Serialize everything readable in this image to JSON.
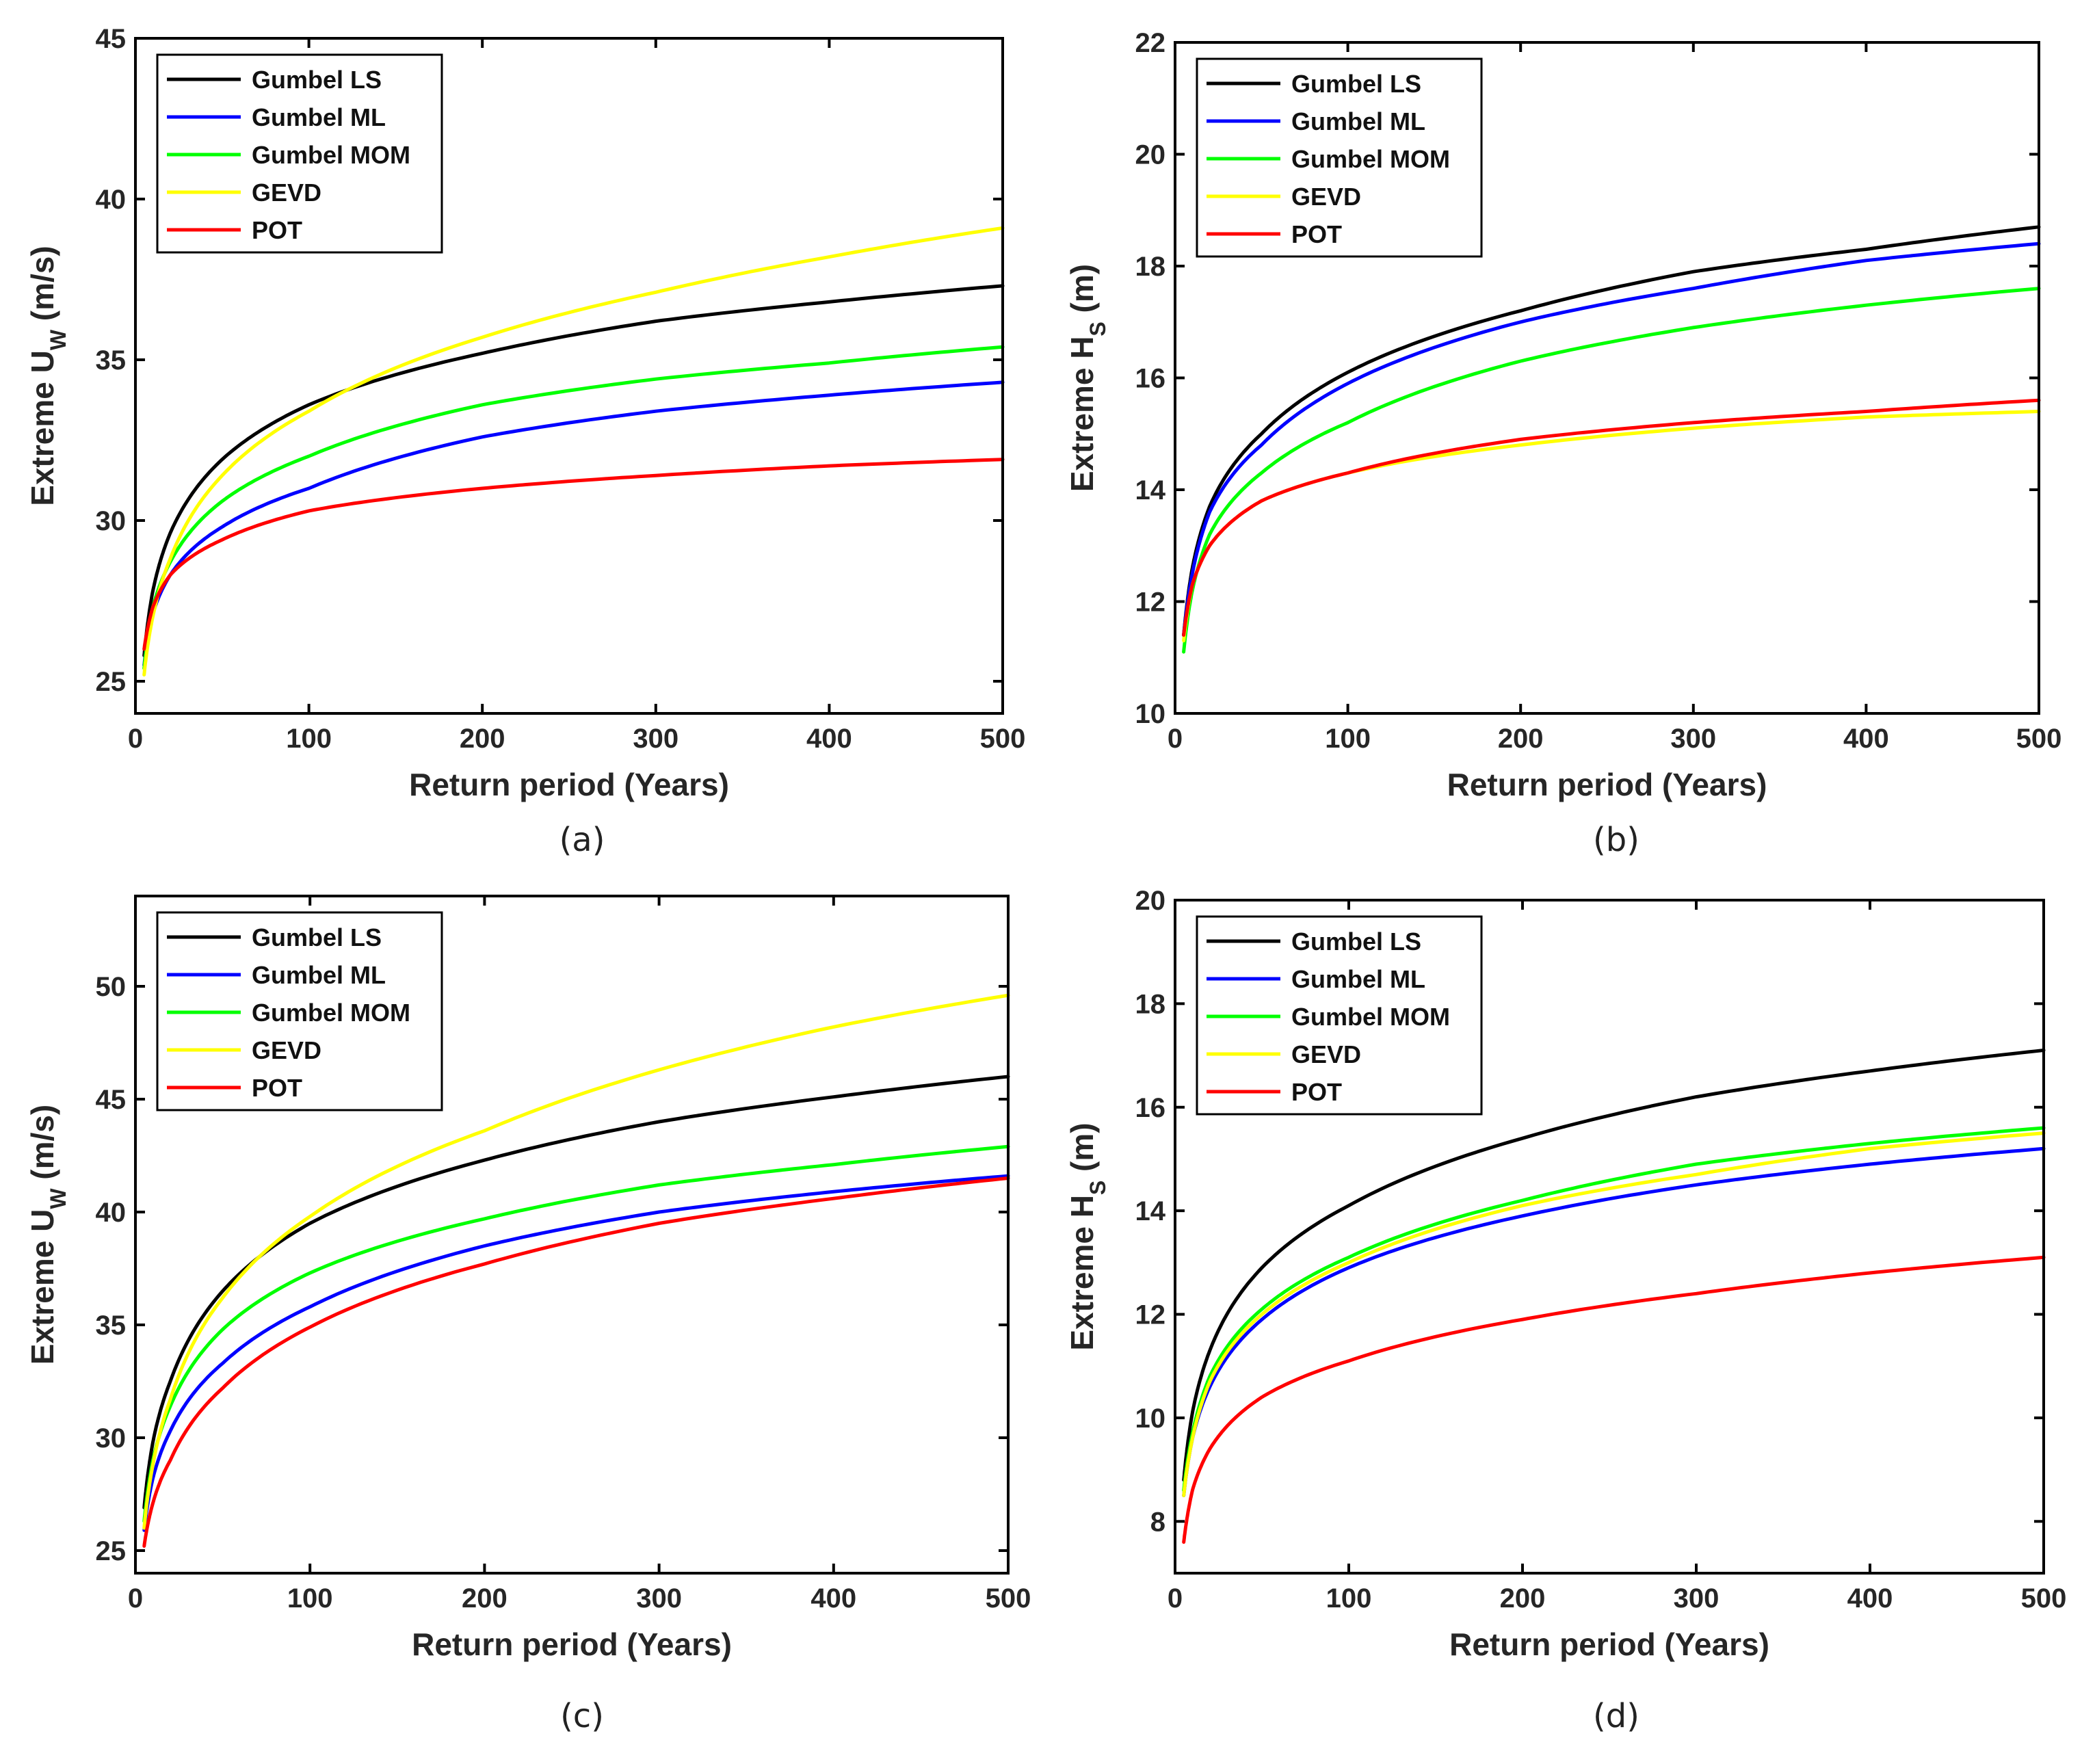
{
  "chart_data": [
    {
      "panel": "(a)",
      "type": "line",
      "xlabel": "Return period (Years)",
      "ylabel": {
        "main": "Extreme U",
        "sub": "W",
        "unit": " (m/s)"
      },
      "xlim": [
        0,
        500
      ],
      "ylim": [
        24,
        45
      ],
      "xticks": [
        0,
        100,
        200,
        300,
        400,
        500
      ],
      "yticks": [
        25,
        30,
        35,
        40,
        45
      ],
      "legend_position": "top-left",
      "series": [
        {
          "name": "Gumbel LS",
          "color": "#000000",
          "x": [
            5,
            10,
            20,
            50,
            100,
            200,
            300,
            400,
            500
          ],
          "values": [
            25.8,
            27.8,
            29.6,
            31.9,
            33.6,
            35.2,
            36.2,
            36.8,
            37.3
          ]
        },
        {
          "name": "Gumbel ML",
          "color": "#0000ff",
          "x": [
            5,
            10,
            20,
            50,
            100,
            200,
            300,
            400,
            500
          ],
          "values": [
            25.5,
            27.1,
            28.3,
            29.8,
            31.0,
            32.6,
            33.4,
            33.9,
            34.3
          ]
        },
        {
          "name": "Gumbel MOM",
          "color": "#00ff00",
          "x": [
            5,
            10,
            20,
            50,
            100,
            200,
            300,
            400,
            500
          ],
          "values": [
            25.4,
            27.3,
            28.7,
            30.6,
            32.0,
            33.6,
            34.4,
            34.9,
            35.4
          ]
        },
        {
          "name": "GEVD",
          "color": "#ffff00",
          "x": [
            5,
            10,
            20,
            50,
            100,
            200,
            300,
            400,
            500
          ],
          "values": [
            25.2,
            27.0,
            28.8,
            31.4,
            33.4,
            35.7,
            37.1,
            38.2,
            39.1
          ]
        },
        {
          "name": "POT",
          "color": "#ff0000",
          "x": [
            5,
            10,
            20,
            50,
            100,
            200,
            300,
            400,
            500
          ],
          "values": [
            26.0,
            27.3,
            28.3,
            29.4,
            30.3,
            31.0,
            31.4,
            31.7,
            31.9
          ]
        }
      ]
    },
    {
      "panel": "(b)",
      "type": "line",
      "xlabel": "Return period (Years)",
      "ylabel": {
        "main": "Extreme H",
        "sub": "S",
        "unit": " (m)"
      },
      "xlim": [
        0,
        500
      ],
      "ylim": [
        10,
        22
      ],
      "xticks": [
        0,
        100,
        200,
        300,
        400,
        500
      ],
      "yticks": [
        10,
        12,
        14,
        16,
        18,
        20,
        22
      ],
      "legend_position": "top-left",
      "series": [
        {
          "name": "Gumbel LS",
          "color": "#000000",
          "x": [
            5,
            10,
            20,
            50,
            100,
            200,
            300,
            400,
            500
          ],
          "values": [
            11.4,
            12.6,
            13.7,
            15.0,
            16.1,
            17.2,
            17.9,
            18.3,
            18.7
          ]
        },
        {
          "name": "Gumbel ML",
          "color": "#0000ff",
          "x": [
            5,
            10,
            20,
            50,
            100,
            200,
            300,
            400,
            500
          ],
          "values": [
            11.4,
            12.5,
            13.6,
            14.8,
            15.9,
            17.0,
            17.6,
            18.1,
            18.4
          ]
        },
        {
          "name": "Gumbel MOM",
          "color": "#00ff00",
          "x": [
            5,
            10,
            20,
            50,
            100,
            200,
            300,
            400,
            500
          ],
          "values": [
            11.1,
            12.2,
            13.2,
            14.3,
            15.2,
            16.3,
            16.9,
            17.3,
            17.6
          ]
        },
        {
          "name": "GEVD",
          "color": "#ffff00",
          "x": [
            5,
            10,
            20,
            50,
            100,
            200,
            300,
            400,
            500
          ],
          "values": [
            11.3,
            12.3,
            13.0,
            13.8,
            14.3,
            14.8,
            15.1,
            15.3,
            15.4
          ]
        },
        {
          "name": "POT",
          "color": "#ff0000",
          "x": [
            5,
            10,
            20,
            50,
            100,
            200,
            300,
            400,
            500
          ],
          "values": [
            11.4,
            12.3,
            13.0,
            13.8,
            14.3,
            14.9,
            15.2,
            15.4,
            15.6
          ]
        }
      ]
    },
    {
      "panel": "(c)",
      "type": "line",
      "xlabel": "Return period (Years)",
      "ylabel": {
        "main": "Extreme U",
        "sub": "W",
        "unit": " (m/s)"
      },
      "xlim": [
        0,
        500
      ],
      "ylim": [
        24,
        54
      ],
      "xticks": [
        0,
        100,
        200,
        300,
        400,
        500
      ],
      "yticks": [
        25,
        30,
        35,
        40,
        45,
        50
      ],
      "legend_position": "top-left",
      "series": [
        {
          "name": "Gumbel LS",
          "color": "#000000",
          "x": [
            5,
            10,
            20,
            50,
            100,
            200,
            300,
            400,
            500
          ],
          "values": [
            26.9,
            29.8,
            32.5,
            36.5,
            39.5,
            42.3,
            44.0,
            45.1,
            46.0
          ]
        },
        {
          "name": "Gumbel ML",
          "color": "#0000ff",
          "x": [
            5,
            10,
            20,
            50,
            100,
            200,
            300,
            400,
            500
          ],
          "values": [
            25.9,
            28.2,
            30.3,
            33.3,
            35.8,
            38.5,
            40.0,
            40.9,
            41.6
          ]
        },
        {
          "name": "Gumbel MOM",
          "color": "#00ff00",
          "x": [
            5,
            10,
            20,
            50,
            100,
            200,
            300,
            400,
            500
          ],
          "values": [
            26.3,
            29.0,
            31.4,
            34.8,
            37.3,
            39.7,
            41.2,
            42.1,
            42.9
          ]
        },
        {
          "name": "GEVD",
          "color": "#ffff00",
          "x": [
            5,
            10,
            20,
            50,
            100,
            200,
            300,
            400,
            500
          ],
          "values": [
            26.0,
            28.8,
            31.7,
            36.2,
            39.8,
            43.6,
            46.3,
            48.2,
            49.6
          ]
        },
        {
          "name": "POT",
          "color": "#ff0000",
          "x": [
            5,
            10,
            20,
            50,
            100,
            200,
            300,
            400,
            500
          ],
          "values": [
            25.2,
            27.1,
            29.0,
            32.2,
            34.9,
            37.7,
            39.5,
            40.6,
            41.5
          ]
        }
      ]
    },
    {
      "panel": "(d)",
      "type": "line",
      "xlabel": "Return period (Years)",
      "ylabel": {
        "main": "Extreme H",
        "sub": "S",
        "unit": " (m)"
      },
      "xlim": [
        0,
        500
      ],
      "ylim": [
        7,
        20
      ],
      "xticks": [
        0,
        100,
        200,
        300,
        400,
        500
      ],
      "yticks": [
        8,
        10,
        12,
        14,
        16,
        18,
        20
      ],
      "legend_position": "top-left",
      "series": [
        {
          "name": "Gumbel LS",
          "color": "#000000",
          "x": [
            5,
            10,
            20,
            50,
            100,
            200,
            300,
            400,
            500
          ],
          "values": [
            8.8,
            10.1,
            11.3,
            12.9,
            14.1,
            15.4,
            16.2,
            16.7,
            17.1
          ]
        },
        {
          "name": "Gumbel ML",
          "color": "#0000ff",
          "x": [
            5,
            10,
            20,
            50,
            100,
            200,
            300,
            400,
            500
          ],
          "values": [
            8.5,
            9.6,
            10.6,
            11.9,
            12.9,
            13.9,
            14.5,
            14.9,
            15.2
          ]
        },
        {
          "name": "Gumbel MOM",
          "color": "#00ff00",
          "x": [
            5,
            10,
            20,
            50,
            100,
            200,
            300,
            400,
            500
          ],
          "values": [
            8.6,
            9.7,
            10.8,
            12.1,
            13.1,
            14.2,
            14.9,
            15.3,
            15.6
          ]
        },
        {
          "name": "GEVD",
          "color": "#ffff00",
          "x": [
            5,
            10,
            20,
            50,
            100,
            200,
            300,
            400,
            500
          ],
          "values": [
            8.5,
            9.6,
            10.7,
            12.0,
            13.0,
            14.1,
            14.7,
            15.2,
            15.5
          ]
        },
        {
          "name": "POT",
          "color": "#ff0000",
          "x": [
            5,
            10,
            20,
            50,
            100,
            200,
            300,
            400,
            500
          ],
          "values": [
            7.6,
            8.6,
            9.4,
            10.4,
            11.1,
            11.9,
            12.4,
            12.8,
            13.1
          ]
        }
      ]
    }
  ]
}
